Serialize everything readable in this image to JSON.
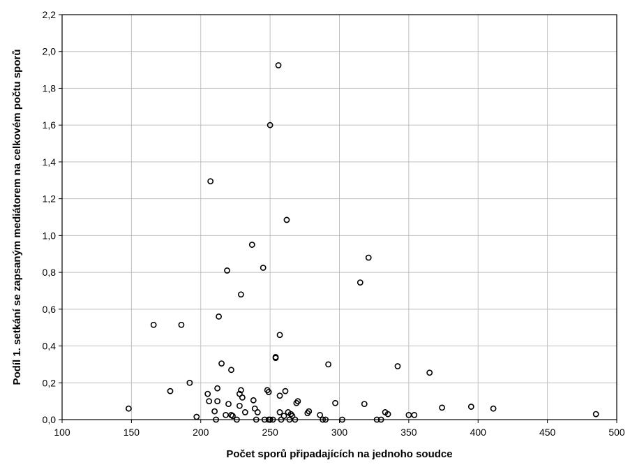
{
  "chart_data": {
    "type": "scatter",
    "title": "",
    "xlabel": "Počet sporů připadajících na jednoho soudce",
    "ylabel": "Podíl 1. setkání se zapsaným mediátorem na celkovém počtu sporů",
    "xlim": [
      100,
      500
    ],
    "ylim": [
      0,
      2.2
    ],
    "grid": true,
    "x_ticks": [
      "100",
      "150",
      "200",
      "250",
      "300",
      "350",
      "400",
      "450",
      "500"
    ],
    "y_ticks": [
      "0,0",
      "0,2",
      "0,4",
      "0,6",
      "0,8",
      "1,0",
      "1,2",
      "1,4",
      "1,6",
      "1,8",
      "2,0",
      "2,2"
    ],
    "points": [
      {
        "x": 148,
        "y": 0.06
      },
      {
        "x": 166,
        "y": 0.515
      },
      {
        "x": 178,
        "y": 0.155
      },
      {
        "x": 186,
        "y": 0.515
      },
      {
        "x": 192,
        "y": 0.2
      },
      {
        "x": 197,
        "y": 0.015
      },
      {
        "x": 205,
        "y": 0.14
      },
      {
        "x": 206,
        "y": 0.1
      },
      {
        "x": 207,
        "y": 1.295
      },
      {
        "x": 210,
        "y": 0.045
      },
      {
        "x": 211,
        "y": 0.0
      },
      {
        "x": 212,
        "y": 0.1
      },
      {
        "x": 212,
        "y": 0.17
      },
      {
        "x": 213,
        "y": 0.56
      },
      {
        "x": 215,
        "y": 0.305
      },
      {
        "x": 218,
        "y": 0.025
      },
      {
        "x": 219,
        "y": 0.81
      },
      {
        "x": 220,
        "y": 0.085
      },
      {
        "x": 222,
        "y": 0.27
      },
      {
        "x": 222,
        "y": 0.025
      },
      {
        "x": 223,
        "y": 0.02
      },
      {
        "x": 226,
        "y": 0.0
      },
      {
        "x": 228,
        "y": 0.14
      },
      {
        "x": 228,
        "y": 0.075
      },
      {
        "x": 229,
        "y": 0.16
      },
      {
        "x": 229,
        "y": 0.68
      },
      {
        "x": 230,
        "y": 0.12
      },
      {
        "x": 232,
        "y": 0.04
      },
      {
        "x": 237,
        "y": 0.95
      },
      {
        "x": 238,
        "y": 0.105
      },
      {
        "x": 239,
        "y": 0.06
      },
      {
        "x": 240,
        "y": 0.0
      },
      {
        "x": 241,
        "y": 0.04
      },
      {
        "x": 245,
        "y": 0.825
      },
      {
        "x": 246,
        "y": 0.0
      },
      {
        "x": 248,
        "y": 0.16
      },
      {
        "x": 249,
        "y": 0.15
      },
      {
        "x": 249,
        "y": 0.0
      },
      {
        "x": 250,
        "y": 1.6
      },
      {
        "x": 250,
        "y": 0.0
      },
      {
        "x": 252,
        "y": 0.0
      },
      {
        "x": 254,
        "y": 0.34
      },
      {
        "x": 254,
        "y": 0.335
      },
      {
        "x": 256,
        "y": 1.925
      },
      {
        "x": 257,
        "y": 0.46
      },
      {
        "x": 257,
        "y": 0.13
      },
      {
        "x": 257,
        "y": 0.04
      },
      {
        "x": 258,
        "y": 0.0
      },
      {
        "x": 260,
        "y": 0.02
      },
      {
        "x": 261,
        "y": 0.155
      },
      {
        "x": 262,
        "y": 1.085
      },
      {
        "x": 263,
        "y": 0.04
      },
      {
        "x": 264,
        "y": 0.0
      },
      {
        "x": 265,
        "y": 0.03
      },
      {
        "x": 266,
        "y": 0.02
      },
      {
        "x": 268,
        "y": 0.0
      },
      {
        "x": 269,
        "y": 0.09
      },
      {
        "x": 270,
        "y": 0.1
      },
      {
        "x": 277,
        "y": 0.035
      },
      {
        "x": 278,
        "y": 0.045
      },
      {
        "x": 286,
        "y": 0.025
      },
      {
        "x": 288,
        "y": 0.0
      },
      {
        "x": 290,
        "y": 0.0
      },
      {
        "x": 292,
        "y": 0.3
      },
      {
        "x": 297,
        "y": 0.09
      },
      {
        "x": 302,
        "y": 0.0
      },
      {
        "x": 315,
        "y": 0.745
      },
      {
        "x": 318,
        "y": 0.085
      },
      {
        "x": 321,
        "y": 0.88
      },
      {
        "x": 327,
        "y": 0.0
      },
      {
        "x": 330,
        "y": 0.0
      },
      {
        "x": 333,
        "y": 0.04
      },
      {
        "x": 335,
        "y": 0.03
      },
      {
        "x": 342,
        "y": 0.29
      },
      {
        "x": 350,
        "y": 0.025
      },
      {
        "x": 354,
        "y": 0.025
      },
      {
        "x": 365,
        "y": 0.255
      },
      {
        "x": 374,
        "y": 0.065
      },
      {
        "x": 395,
        "y": 0.07
      },
      {
        "x": 411,
        "y": 0.06
      },
      {
        "x": 485,
        "y": 0.03
      }
    ]
  }
}
